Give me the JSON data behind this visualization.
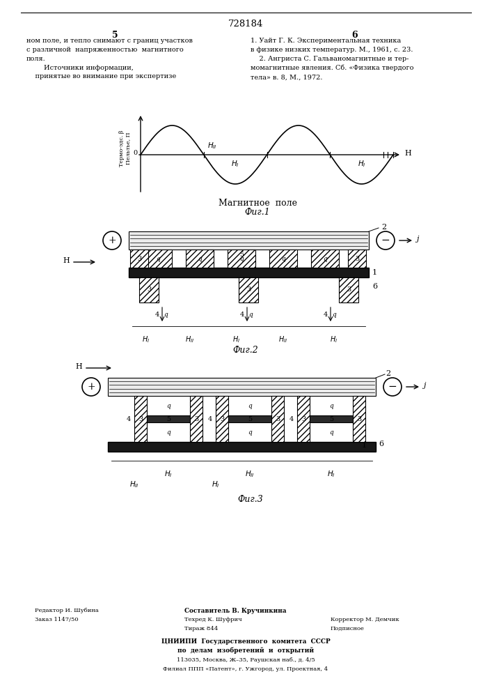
{
  "page_number": "728184",
  "col_left_num": "5",
  "col_right_num": "6",
  "col_left_text": "ном поле, и тепло снимают с границ участков\nс различной  напряженностью  магнитного\nполя.\n        Источники информации,\n    принятые во внимание при экспертизе",
  "col_right_text": "1. Уайт Г. К. Экспериментальная техника\nв физике низких температур. М., 1961, с. 23.\n    2. Ангриста С. Гальваномагнитные и тер-\nмомагнитные явления. Сб. «Физика твердого\nтела» в. 8, М., 1972.",
  "fig1_ylabel": "Термо-эдс. β\nПельтье, П",
  "fig1_xlabel": "H",
  "fig1_title": "Магнитное  поле",
  "fig1_caption": "Фиг.1",
  "fig2_caption": "Фиг.2",
  "fig3_caption": "Фиг.3",
  "footer_left1": "Редактор И. Шубина",
  "footer_left2": "Заказ 1147/50",
  "footer_center_bold": "Составитель В. Кручинкина",
  "footer_center2": "Техред К. Шуфрич",
  "footer_center3": "Тираж 844",
  "footer_right1": "Корректор М. Демчик",
  "footer_right2": "Подписное",
  "footer_org1": "ЦНИИПИ  Государственного  комитета  СССР",
  "footer_org2": "по  делам  изобретений  и  открытий",
  "footer_addr1": "113035, Москва, Ж–35, Раушская наб., д. 4/5",
  "footer_addr2": "Филиал ППП «Патент», г. Ужгород, ул. Проектная, 4"
}
